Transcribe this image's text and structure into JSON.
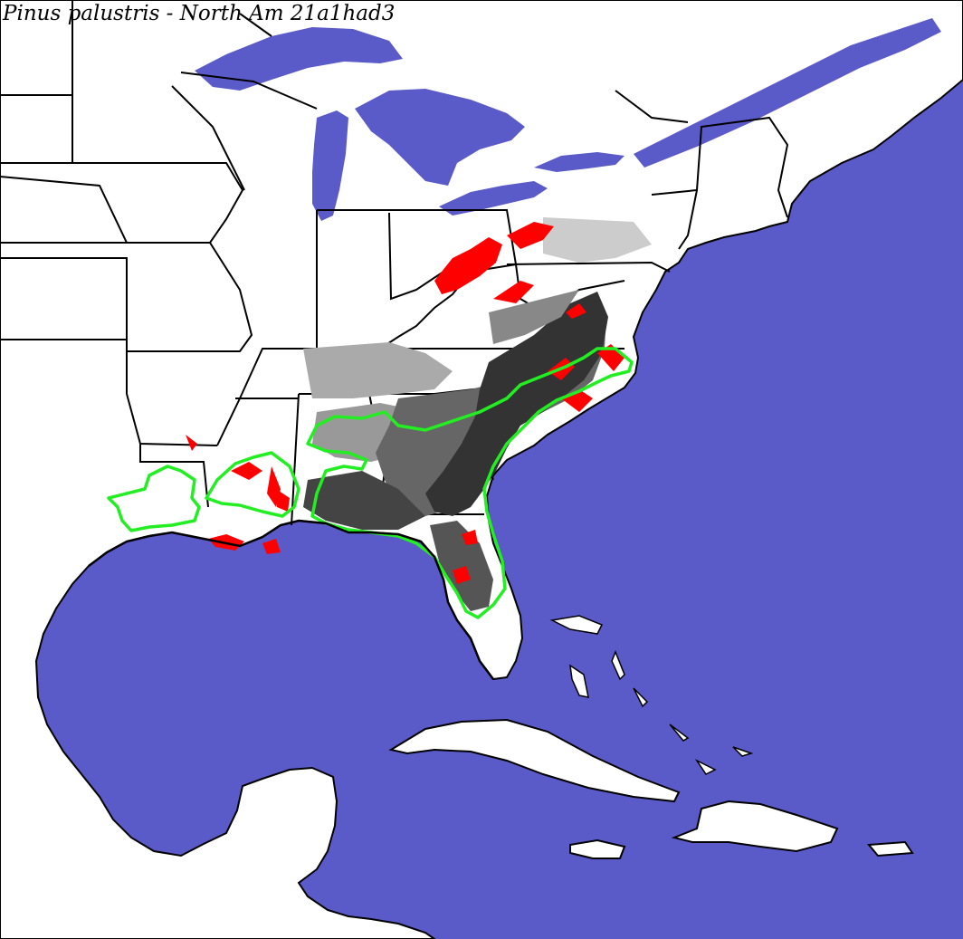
{
  "map": {
    "title": "Pinus palustris - North Am 21a1had3",
    "colors": {
      "ocean": "#5a5ac8",
      "land": "#ffffff",
      "borders": "#000000",
      "range_outline": "#22ee22",
      "highlight": "#ff0000",
      "density_dark": "#333333",
      "density_mid": "#666666",
      "density_light": "#aaaaaa"
    }
  }
}
